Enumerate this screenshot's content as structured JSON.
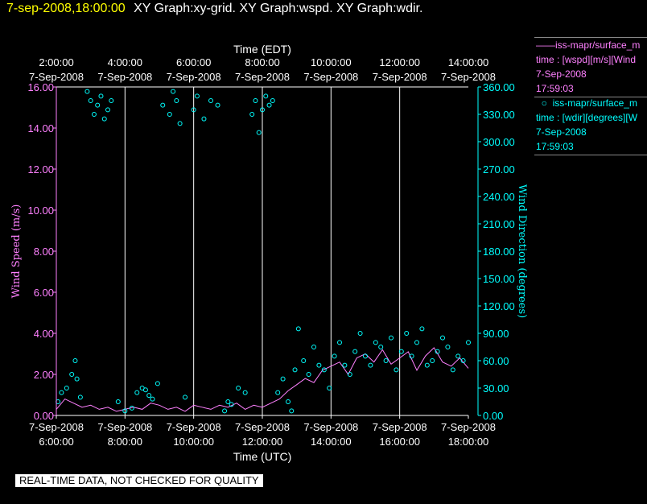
{
  "header": {
    "timestamp": "7-sep-2008,18:00:00",
    "graphs": "XY Graph:xy-grid.  XY Graph:wspd.  XY Graph:wdir."
  },
  "legend": {
    "wspd": {
      "line1": "iss-mapr/surface_m",
      "line2": "time : [wspd][m/s][Wind",
      "line3": "7-Sep-2008",
      "line4": "17:59:03"
    },
    "wdir": {
      "line1": "iss-mapr/surface_m",
      "line2": "time : [wdir][degrees][W",
      "line3": "7-Sep-2008",
      "line4": "17:59:03"
    }
  },
  "footer": {
    "note": "REAL-TIME DATA, NOT CHECKED FOR QUALITY"
  },
  "colors": {
    "wspd": "#ff80ff",
    "wdir": "#00ffff",
    "grid": "#ffffff",
    "header": "#ffff00"
  },
  "chart_data": {
    "type": "line",
    "xlabel_top": "Time (EDT)",
    "xlabel_bottom": "Time (UTC)",
    "ylabel_left": "Wind Speed (m/s)",
    "ylabel_right": "Wind Direction (degrees)",
    "xlim_utc_hours": [
      6,
      18
    ],
    "ylim_left": [
      0,
      16
    ],
    "ylim_right": [
      0,
      360
    ],
    "y_ticks_left": [
      "0.00",
      "2.00",
      "4.00",
      "6.00",
      "8.00",
      "10.00",
      "12.00",
      "14.00",
      "16.00"
    ],
    "y_ticks_right": [
      "0.00",
      "30.00",
      "60.00",
      "90.00",
      "120.00",
      "150.00",
      "180.00",
      "210.00",
      "240.00",
      "270.00",
      "300.00",
      "330.00",
      "360.00"
    ],
    "x_ticks_bottom": [
      {
        "hour": 6,
        "date": "7-Sep-2008",
        "time": "6:00:00"
      },
      {
        "hour": 8,
        "date": "7-Sep-2008",
        "time": "8:00:00"
      },
      {
        "hour": 10,
        "date": "7-Sep-2008",
        "time": "10:00:00"
      },
      {
        "hour": 12,
        "date": "7-Sep-2008",
        "time": "12:00:00"
      },
      {
        "hour": 14,
        "date": "7-Sep-2008",
        "time": "14:00:00"
      },
      {
        "hour": 16,
        "date": "7-Sep-2008",
        "time": "16:00:00"
      },
      {
        "hour": 18,
        "date": "7-Sep-2008",
        "time": "18:00:00"
      }
    ],
    "x_ticks_top": [
      {
        "hour": 6,
        "date": "7-Sep-2008",
        "time": "2:00:00"
      },
      {
        "hour": 8,
        "date": "7-Sep-2008",
        "time": "4:00:00"
      },
      {
        "hour": 10,
        "date": "7-Sep-2008",
        "time": "6:00:00"
      },
      {
        "hour": 12,
        "date": "7-Sep-2008",
        "time": "8:00:00"
      },
      {
        "hour": 14,
        "date": "7-Sep-2008",
        "time": "10:00:00"
      },
      {
        "hour": 16,
        "date": "7-Sep-2008",
        "time": "12:00:00"
      },
      {
        "hour": 18,
        "date": "7-Sep-2008",
        "time": "14:00:00"
      }
    ],
    "grid_vertical": true,
    "series": [
      {
        "name": "iss-mapr/surface_m",
        "axis": "left",
        "style": "line",
        "x": [
          6.0,
          6.25,
          6.5,
          6.75,
          7.0,
          7.25,
          7.5,
          7.75,
          8.0,
          8.25,
          8.5,
          8.75,
          9.0,
          9.25,
          9.5,
          9.75,
          10.0,
          10.25,
          10.5,
          10.75,
          11.0,
          11.25,
          11.5,
          11.75,
          12.0,
          12.25,
          12.5,
          12.75,
          13.0,
          13.25,
          13.5,
          13.75,
          14.0,
          14.25,
          14.5,
          14.75,
          15.0,
          15.25,
          15.5,
          15.75,
          16.0,
          16.25,
          16.5,
          16.75,
          17.0,
          17.25,
          17.5,
          17.75,
          18.0
        ],
        "y": [
          0.3,
          0.8,
          0.6,
          0.4,
          0.5,
          0.3,
          0.4,
          0.2,
          0.3,
          0.4,
          0.3,
          0.6,
          0.5,
          0.3,
          0.4,
          0.2,
          0.5,
          0.4,
          0.3,
          0.5,
          0.4,
          0.6,
          0.3,
          0.5,
          0.4,
          0.6,
          0.8,
          1.2,
          1.5,
          1.8,
          1.6,
          2.2,
          2.4,
          2.6,
          2.0,
          2.8,
          3.0,
          2.6,
          3.2,
          2.5,
          2.8,
          3.1,
          2.2,
          2.9,
          3.3,
          2.6,
          2.4,
          2.8,
          2.3
        ]
      },
      {
        "name": "iss-mapr/surface_m",
        "axis": "right",
        "style": "scatter",
        "x": [
          6.05,
          6.15,
          6.3,
          6.45,
          6.55,
          6.6,
          6.7,
          6.9,
          7.0,
          7.1,
          7.2,
          7.3,
          7.4,
          7.5,
          7.6,
          7.8,
          8.0,
          8.2,
          8.35,
          8.5,
          8.6,
          8.7,
          8.8,
          8.95,
          9.1,
          9.3,
          9.4,
          9.5,
          9.6,
          9.75,
          10.0,
          10.1,
          10.3,
          10.5,
          10.7,
          10.9,
          11.0,
          11.1,
          11.3,
          11.5,
          11.7,
          11.8,
          11.9,
          12.0,
          12.1,
          12.2,
          12.3,
          12.45,
          12.6,
          12.75,
          12.85,
          12.95,
          13.05,
          13.2,
          13.35,
          13.5,
          13.65,
          13.8,
          13.95,
          14.1,
          14.25,
          14.4,
          14.55,
          14.7,
          14.85,
          15.0,
          15.15,
          15.3,
          15.45,
          15.6,
          15.75,
          15.9,
          16.05,
          16.2,
          16.35,
          16.5,
          16.65,
          16.8,
          16.95,
          17.1,
          17.25,
          17.4,
          17.55,
          17.7,
          17.85,
          18.0
        ],
        "y": [
          15,
          25,
          30,
          45,
          60,
          40,
          20,
          355,
          345,
          330,
          340,
          350,
          325,
          335,
          345,
          15,
          5,
          8,
          25,
          30,
          28,
          22,
          18,
          35,
          340,
          330,
          355,
          345,
          320,
          20,
          335,
          350,
          325,
          345,
          340,
          5,
          15,
          12,
          30,
          25,
          330,
          345,
          310,
          335,
          350,
          340,
          345,
          25,
          40,
          15,
          5,
          50,
          95,
          60,
          45,
          75,
          55,
          50,
          30,
          65,
          80,
          55,
          45,
          70,
          90,
          65,
          55,
          80,
          75,
          60,
          85,
          50,
          70,
          90,
          65,
          80,
          95,
          55,
          60,
          70,
          85,
          75,
          50,
          65,
          60,
          80
        ]
      }
    ]
  }
}
